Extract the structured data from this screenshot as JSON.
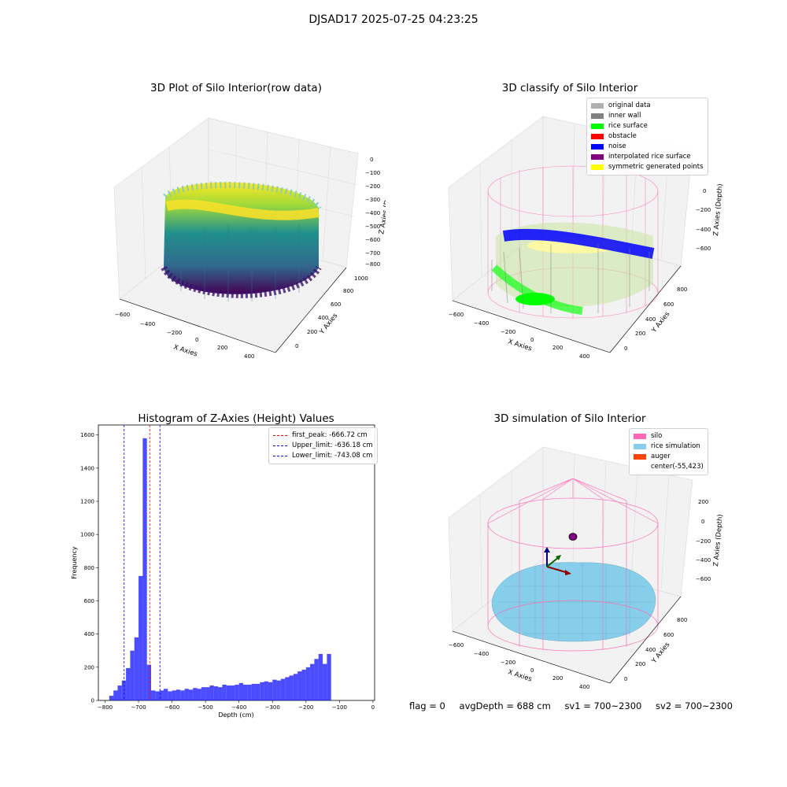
{
  "figure_title": "DJSAD17 2025-07-25 04:23:25",
  "panels": {
    "raw": {
      "title": "3D Plot of Silo Interior(row data)",
      "xlabel": "X Axies",
      "ylabel": "Y Axies",
      "zlabel": "Z Axies (Depth)",
      "xticks": [
        "−600",
        "−400",
        "−200",
        "0",
        "200",
        "400"
      ],
      "yticks": [
        "0",
        "200",
        "400",
        "600",
        "800",
        "1000"
      ],
      "zticks": [
        "0",
        "−100",
        "−200",
        "−300",
        "−400",
        "−500",
        "−600",
        "−700",
        "−800"
      ]
    },
    "classify": {
      "title": "3D classify of Silo Interior",
      "xlabel": "X Axies",
      "ylabel": "Y Axies",
      "zlabel": "Z Axies (Depth)",
      "xticks": [
        "−600",
        "−400",
        "−200",
        "0",
        "200",
        "400"
      ],
      "yticks": [
        "0",
        "200",
        "400",
        "600",
        "800"
      ],
      "zticks": [
        "0",
        "−200",
        "−400",
        "−600"
      ],
      "legend": [
        {
          "label": "original data",
          "color": "#b0b0b0"
        },
        {
          "label": "inner wall",
          "color": "#808080"
        },
        {
          "label": "rice surface",
          "color": "#00ff00"
        },
        {
          "label": "obstacle",
          "color": "#ff0000"
        },
        {
          "label": "noise",
          "color": "#0000ff"
        },
        {
          "label": "interpolated rice surface",
          "color": "#800080"
        },
        {
          "label": "symmetric generated points",
          "color": "#ffff00"
        }
      ]
    },
    "simulation": {
      "title": "3D simulation of Silo Interior",
      "xlabel": "X Axies",
      "ylabel": "Y Axies",
      "zlabel": "Z Axies (Depth)",
      "xticks": [
        "−600",
        "−400",
        "−200",
        "0",
        "200",
        "400"
      ],
      "yticks": [
        "0",
        "200",
        "400",
        "600",
        "800"
      ],
      "zticks": [
        "200",
        "0",
        "−200",
        "−400",
        "−600"
      ],
      "legend": [
        {
          "label": "silo",
          "color": "#ff69b4"
        },
        {
          "label": "rice simulation",
          "color": "#87ceeb"
        },
        {
          "label": "auger",
          "color": "#ff4500"
        },
        {
          "label": "center(-55,423)",
          "color": ""
        }
      ]
    }
  },
  "chart_data": {
    "type": "bar",
    "title": "Histogram of Z-Axies (Height) Values",
    "xlabel": "Depth (cm)",
    "ylabel": "Frequency",
    "xlim": [
      -820,
      5
    ],
    "ylim": [
      0,
      1660
    ],
    "xticks": [
      -800,
      -700,
      -600,
      -500,
      -400,
      -300,
      -200,
      -100,
      0
    ],
    "yticks": [
      0,
      200,
      400,
      600,
      800,
      1000,
      1200,
      1400,
      1600
    ],
    "bar_color": "#0000ff",
    "bin_width": 12.5,
    "bin_starts": [
      -787.5,
      -775,
      -762.5,
      -750,
      -737.5,
      -725,
      -712.5,
      -700,
      -687.5,
      -675,
      -662.5,
      -650,
      -637.5,
      -625,
      -612.5,
      -600,
      -587.5,
      -575,
      -562.5,
      -550,
      -537.5,
      -525,
      -512.5,
      -500,
      -487.5,
      -475,
      -462.5,
      -450,
      -437.5,
      -425,
      -412.5,
      -400,
      -387.5,
      -375,
      -362.5,
      -350,
      -337.5,
      -325,
      -312.5,
      -300,
      -287.5,
      -275,
      -262.5,
      -250,
      -237.5,
      -225,
      -212.5,
      -200,
      -187.5,
      -175,
      -162.5,
      -150,
      -137.5,
      -125,
      -112.5,
      -100,
      -87.5,
      -75,
      -62.5,
      -50,
      -37.5
    ],
    "values": [
      28,
      60,
      90,
      120,
      195,
      300,
      380,
      750,
      1580,
      215,
      60,
      55,
      60,
      70,
      55,
      60,
      65,
      60,
      70,
      65,
      75,
      70,
      80,
      80,
      90,
      85,
      80,
      95,
      90,
      90,
      95,
      105,
      95,
      95,
      100,
      100,
      110,
      115,
      110,
      125,
      120,
      130,
      140,
      150,
      160,
      175,
      185,
      200,
      220,
      250,
      280,
      220,
      280,
      0,
      0,
      0,
      0,
      0,
      0,
      0,
      0
    ],
    "vlines": [
      {
        "name": "first_peak",
        "x": -666.72,
        "color": "#ff0000",
        "label": "first_peak: -666.72 cm"
      },
      {
        "name": "Upper_limit",
        "x": -636.18,
        "color": "#0000ff",
        "label": "Upper_limit: -636.18 cm"
      },
      {
        "name": "Lower_limit",
        "x": -743.08,
        "color": "#0000ff",
        "label": "Lower_limit: -743.08 cm"
      }
    ]
  },
  "status": {
    "flag": "flag = 0",
    "avg": "avgDepth = 688 cm",
    "sv1": "sv1 = 700~2300",
    "sv2": "sv2 = 700~2300"
  }
}
